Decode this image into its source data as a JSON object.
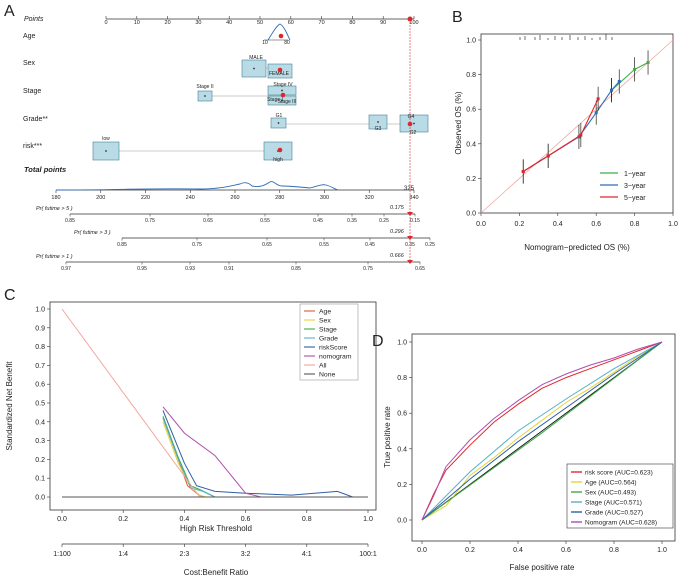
{
  "panels": {
    "a": "A",
    "b": "B",
    "c": "C",
    "d": "D"
  },
  "chart_data": [
    {
      "type": "nomogram",
      "panel": "A",
      "points_label": "Points",
      "points_ticks": [
        0,
        10,
        20,
        30,
        40,
        50,
        60,
        70,
        80,
        90,
        100
      ],
      "rows": [
        {
          "label": "Age",
          "ticks": [
            "10",
            "80"
          ]
        },
        {
          "label": "Sex",
          "ticks": [
            "MALE",
            "FEMALE"
          ]
        },
        {
          "label": "Stage",
          "ticks": [
            "Stage II",
            "Stage IV",
            "Stage I",
            "Stage III"
          ]
        },
        {
          "label": "Grade**",
          "ticks": [
            "G1",
            "G3",
            "G4",
            "G2"
          ]
        },
        {
          "label": "risk***",
          "ticks": [
            "low",
            "high"
          ]
        }
      ],
      "total_points_label": "Total points",
      "total_ticks": [
        180,
        200,
        220,
        240,
        260,
        280,
        300,
        320,
        340
      ],
      "total_value": "325",
      "prob_rows": [
        {
          "label": "Pr( futime > 5 )",
          "ticks": [
            "0.85",
            "0.75",
            "0.65",
            "0.55",
            "0.45",
            "0.35",
            "0.25",
            "0.15"
          ],
          "value": "0.175"
        },
        {
          "label": "Pr( futime > 3 )",
          "ticks": [
            "0.85",
            "0.75",
            "0.65",
            "0.55",
            "0.45",
            "0.35",
            "0.25"
          ],
          "value": "0.296"
        },
        {
          "label": "Pr( futime > 1 )",
          "ticks": [
            "0.97",
            "0.95",
            "0.93",
            "0.91",
            "0.85",
            "0.75",
            "0.65"
          ],
          "value": "0.666"
        }
      ]
    },
    {
      "type": "line",
      "panel": "B",
      "xlabel": "Nomogram−predicted OS (%)",
      "ylabel": "Observed OS (%)",
      "xlim": [
        0,
        1
      ],
      "ylim": [
        0,
        1
      ],
      "ticks": [
        "0.0",
        "0.2",
        "0.4",
        "0.6",
        "0.8",
        "1.0"
      ],
      "series": [
        {
          "name": "1−year",
          "color": "#3cb043",
          "x": [
            0.68,
            0.8,
            0.87
          ],
          "y": [
            0.71,
            0.83,
            0.87
          ]
        },
        {
          "name": "3−year",
          "color": "#2e6db4",
          "x": [
            0.22,
            0.35,
            0.51,
            0.6,
            0.68,
            0.72
          ],
          "y": [
            0.24,
            0.33,
            0.44,
            0.58,
            0.71,
            0.76
          ]
        },
        {
          "name": "5−year",
          "color": "#e0262a",
          "x": [
            0.22,
            0.35,
            0.52,
            0.61
          ],
          "y": [
            0.24,
            0.33,
            0.45,
            0.66
          ]
        }
      ]
    },
    {
      "type": "line",
      "panel": "C",
      "xlabel": "High Risk Threshold",
      "x2label": "Cost:Benefit Ratio",
      "ylabel": "Standardized Net Benefit",
      "xlim": [
        0,
        1
      ],
      "ylim": [
        -0.05,
        1.0
      ],
      "xticks": [
        "0.0",
        "0.2",
        "0.4",
        "0.6",
        "0.8",
        "1.0"
      ],
      "x2ticks": [
        "1:100",
        "1:4",
        "2:3",
        "3:2",
        "4:1",
        "100:1"
      ],
      "yticks": [
        "0.0",
        "0.1",
        "0.2",
        "0.3",
        "0.4",
        "0.5",
        "0.6",
        "0.7",
        "0.8",
        "0.9",
        "1.0"
      ],
      "series": [
        {
          "name": "Age",
          "color": "#e4553a",
          "x": [
            0.33,
            0.38,
            0.41,
            0.44,
            0.46
          ],
          "y": [
            0.42,
            0.2,
            0.06,
            0.02,
            0.0
          ]
        },
        {
          "name": "Sex",
          "color": "#e6d33a",
          "x": [
            0.33,
            0.38,
            0.42,
            0.45,
            0.47
          ],
          "y": [
            0.4,
            0.18,
            0.05,
            0.01,
            0.0
          ]
        },
        {
          "name": "Stage",
          "color": "#3daa4a",
          "x": [
            0.33,
            0.38,
            0.42,
            0.45,
            0.5
          ],
          "y": [
            0.43,
            0.21,
            0.06,
            0.04,
            0.0
          ]
        },
        {
          "name": "Grade",
          "color": "#57b0c9",
          "x": [
            0.33,
            0.38,
            0.42,
            0.46,
            0.5
          ],
          "y": [
            0.42,
            0.2,
            0.05,
            0.03,
            0.0
          ]
        },
        {
          "name": "riskScore",
          "color": "#2f5fa8",
          "x": [
            0.33,
            0.4,
            0.44,
            0.5,
            0.6,
            0.75,
            0.9,
            0.95
          ],
          "y": [
            0.46,
            0.18,
            0.06,
            0.03,
            0.02,
            0.01,
            0.03,
            0.0
          ]
        },
        {
          "name": "nomogram",
          "color": "#b04dab",
          "x": [
            0.33,
            0.4,
            0.5,
            0.56,
            0.6,
            0.65,
            1.0
          ],
          "y": [
            0.48,
            0.34,
            0.22,
            0.1,
            0.02,
            0.0,
            0.0
          ]
        },
        {
          "name": "All",
          "color": "#f2a7a0",
          "x": [
            0.0,
            0.45
          ],
          "y": [
            1.0,
            0.0
          ]
        },
        {
          "name": "None",
          "color": "#555555",
          "x": [
            0.0,
            1.0
          ],
          "y": [
            0.0,
            0.0
          ]
        }
      ]
    },
    {
      "type": "line",
      "panel": "D",
      "xlabel": "False positive rate",
      "ylabel": "True positive rate",
      "xlim": [
        0,
        1
      ],
      "ylim": [
        0,
        1
      ],
      "ticks": [
        "0.0",
        "0.2",
        "0.4",
        "0.6",
        "0.8",
        "1.0"
      ],
      "series": [
        {
          "name": "risk score (AUC=0.623)",
          "color": "#e0262a",
          "x": [
            0,
            0.05,
            0.1,
            0.2,
            0.3,
            0.4,
            0.5,
            0.6,
            0.7,
            0.8,
            0.9,
            1.0
          ],
          "y": [
            0,
            0.15,
            0.28,
            0.42,
            0.55,
            0.65,
            0.74,
            0.8,
            0.85,
            0.9,
            0.95,
            1.0
          ]
        },
        {
          "name": "Age (AUC=0.564)",
          "color": "#e6d33a",
          "x": [
            0,
            0.1,
            0.2,
            0.3,
            0.4,
            0.5,
            0.6,
            0.7,
            0.8,
            0.9,
            1.0
          ],
          "y": [
            0,
            0.08,
            0.25,
            0.35,
            0.46,
            0.56,
            0.66,
            0.74,
            0.83,
            0.92,
            1.0
          ]
        },
        {
          "name": "Sex (AUC=0.493)",
          "color": "#3daa4a",
          "x": [
            0,
            0.5,
            1.0
          ],
          "y": [
            0,
            0.49,
            1.0
          ]
        },
        {
          "name": "Stage (AUC=0.571)",
          "color": "#57b0c9",
          "x": [
            0,
            0.2,
            0.4,
            0.6,
            0.8,
            1.0
          ],
          "y": [
            0,
            0.27,
            0.5,
            0.68,
            0.85,
            1.0
          ]
        },
        {
          "name": "Grade (AUC=0.527)",
          "color": "#2f5fa8",
          "x": [
            0,
            0.2,
            0.4,
            0.6,
            0.8,
            1.0
          ],
          "y": [
            0,
            0.23,
            0.44,
            0.63,
            0.82,
            1.0
          ]
        },
        {
          "name": "Nomogram (AUC=0.628)",
          "color": "#b04dab",
          "x": [
            0,
            0.05,
            0.1,
            0.2,
            0.3,
            0.4,
            0.5,
            0.6,
            0.7,
            0.8,
            0.9,
            1.0
          ],
          "y": [
            0,
            0.14,
            0.3,
            0.45,
            0.57,
            0.67,
            0.76,
            0.82,
            0.87,
            0.91,
            0.96,
            1.0
          ]
        }
      ]
    }
  ]
}
